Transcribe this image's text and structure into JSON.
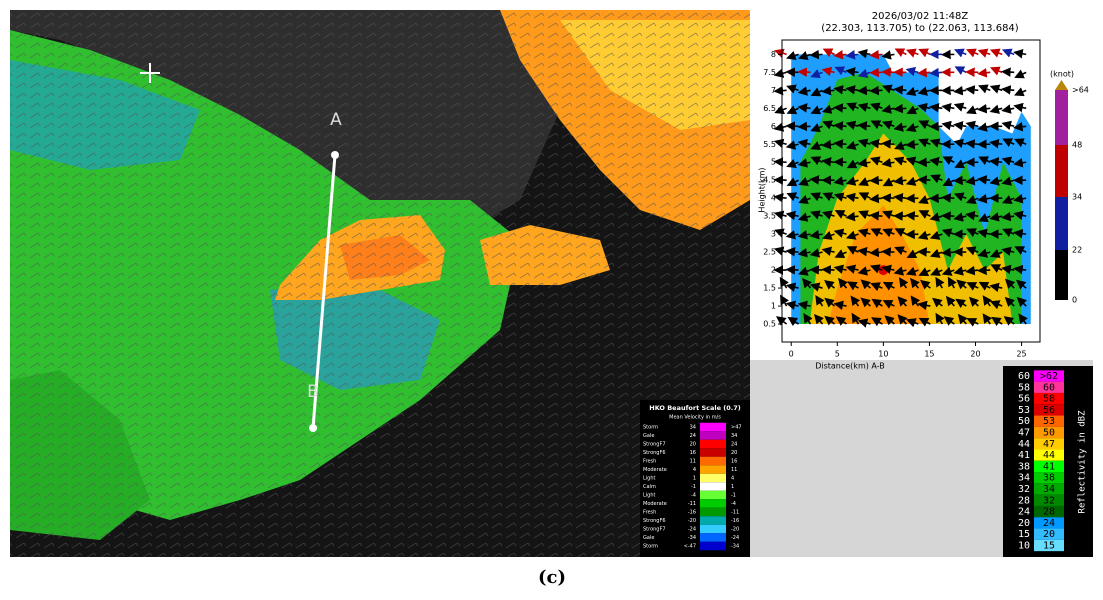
{
  "map": {
    "point_a": "A",
    "point_b": "B",
    "legend": {
      "title": "HKO Beaufort Scale (0.7)",
      "subtitle": "Mean Velocity in m/s",
      "rows": [
        {
          "name": "Storm",
          "low": "34",
          "high": ">47",
          "color": "#ff00ff"
        },
        {
          "name": "Gale",
          "low": "24",
          "high": "34",
          "color": "#c000c0"
        },
        {
          "name": "StrongF7",
          "low": "20",
          "high": "24",
          "color": "#ff0000"
        },
        {
          "name": "StrongF6",
          "low": "16",
          "high": "20",
          "color": "#c80000"
        },
        {
          "name": "Fresh",
          "low": "11",
          "high": "16",
          "color": "#ff6a00"
        },
        {
          "name": "Moderate",
          "low": "4",
          "high": "11",
          "color": "#ffa500"
        },
        {
          "name": "Light",
          "low": "1",
          "high": "4",
          "color": "#ffff66"
        },
        {
          "name": "Calm",
          "low": "-1",
          "high": "1",
          "color": "#ffffff"
        },
        {
          "name": "Light",
          "low": "-4",
          "high": "-1",
          "color": "#66ff33"
        },
        {
          "name": "Moderate",
          "low": "-11",
          "high": "-4",
          "color": "#00cc00"
        },
        {
          "name": "Fresh",
          "low": "-16",
          "high": "-11",
          "color": "#009900"
        },
        {
          "name": "StrongF6",
          "low": "-20",
          "high": "-16",
          "color": "#00aaaa"
        },
        {
          "name": "StrongF7",
          "low": "-24",
          "high": "-20",
          "color": "#33ccff"
        },
        {
          "name": "Gale",
          "low": "-34",
          "high": "-24",
          "color": "#0066ff"
        },
        {
          "name": "Storm",
          "low": "<-47",
          "high": "-34",
          "color": "#0000cc"
        }
      ]
    }
  },
  "cross_section": {
    "title": "2026/03/02 11:48Z",
    "subtitle": "(22.303, 113.705) to (22.063, 113.684)",
    "x_label": "Distance(km) A-B",
    "y_label": "Height(km)",
    "xlim": [
      -1,
      27
    ],
    "ylim": [
      0,
      8.4
    ],
    "xticks": [
      0,
      5,
      10,
      15,
      20,
      25
    ],
    "yticks": [
      0.5,
      1,
      1.5,
      2,
      2.5,
      3,
      3.5,
      4,
      4.5,
      5,
      5.5,
      6,
      6.5,
      7,
      7.5,
      8
    ],
    "wind_bar": {
      "unit": "(knot)",
      "labels": [
        ">64",
        "48",
        "34",
        "22",
        "0"
      ]
    }
  },
  "reflectivity_legend": {
    "title": "Reflectivity in dBZ",
    "rows": [
      {
        "left": "60",
        "right": ">62",
        "color": "#ff00ff"
      },
      {
        "left": "58",
        "right": "60",
        "color": "#ff3399"
      },
      {
        "left": "56",
        "right": "58",
        "color": "#ff0000"
      },
      {
        "left": "53",
        "right": "56",
        "color": "#dd0000"
      },
      {
        "left": "50",
        "right": "53",
        "color": "#ff6600"
      },
      {
        "left": "47",
        "right": "50",
        "color": "#ff9900"
      },
      {
        "left": "44",
        "right": "47",
        "color": "#ffcc00"
      },
      {
        "left": "41",
        "right": "44",
        "color": "#ffff00"
      },
      {
        "left": "38",
        "right": "41",
        "color": "#00ff00"
      },
      {
        "left": "34",
        "right": "38",
        "color": "#00cc00"
      },
      {
        "left": "32",
        "right": "34",
        "color": "#00aa00"
      },
      {
        "left": "28",
        "right": "32",
        "color": "#008800"
      },
      {
        "left": "24",
        "right": "28",
        "color": "#006600"
      },
      {
        "left": "20",
        "right": "24",
        "color": "#0099ff"
      },
      {
        "left": "15",
        "right": "20",
        "color": "#33bbff"
      },
      {
        "left": "10",
        "right": "15",
        "color": "#66ddff"
      }
    ]
  },
  "caption": "(c)"
}
